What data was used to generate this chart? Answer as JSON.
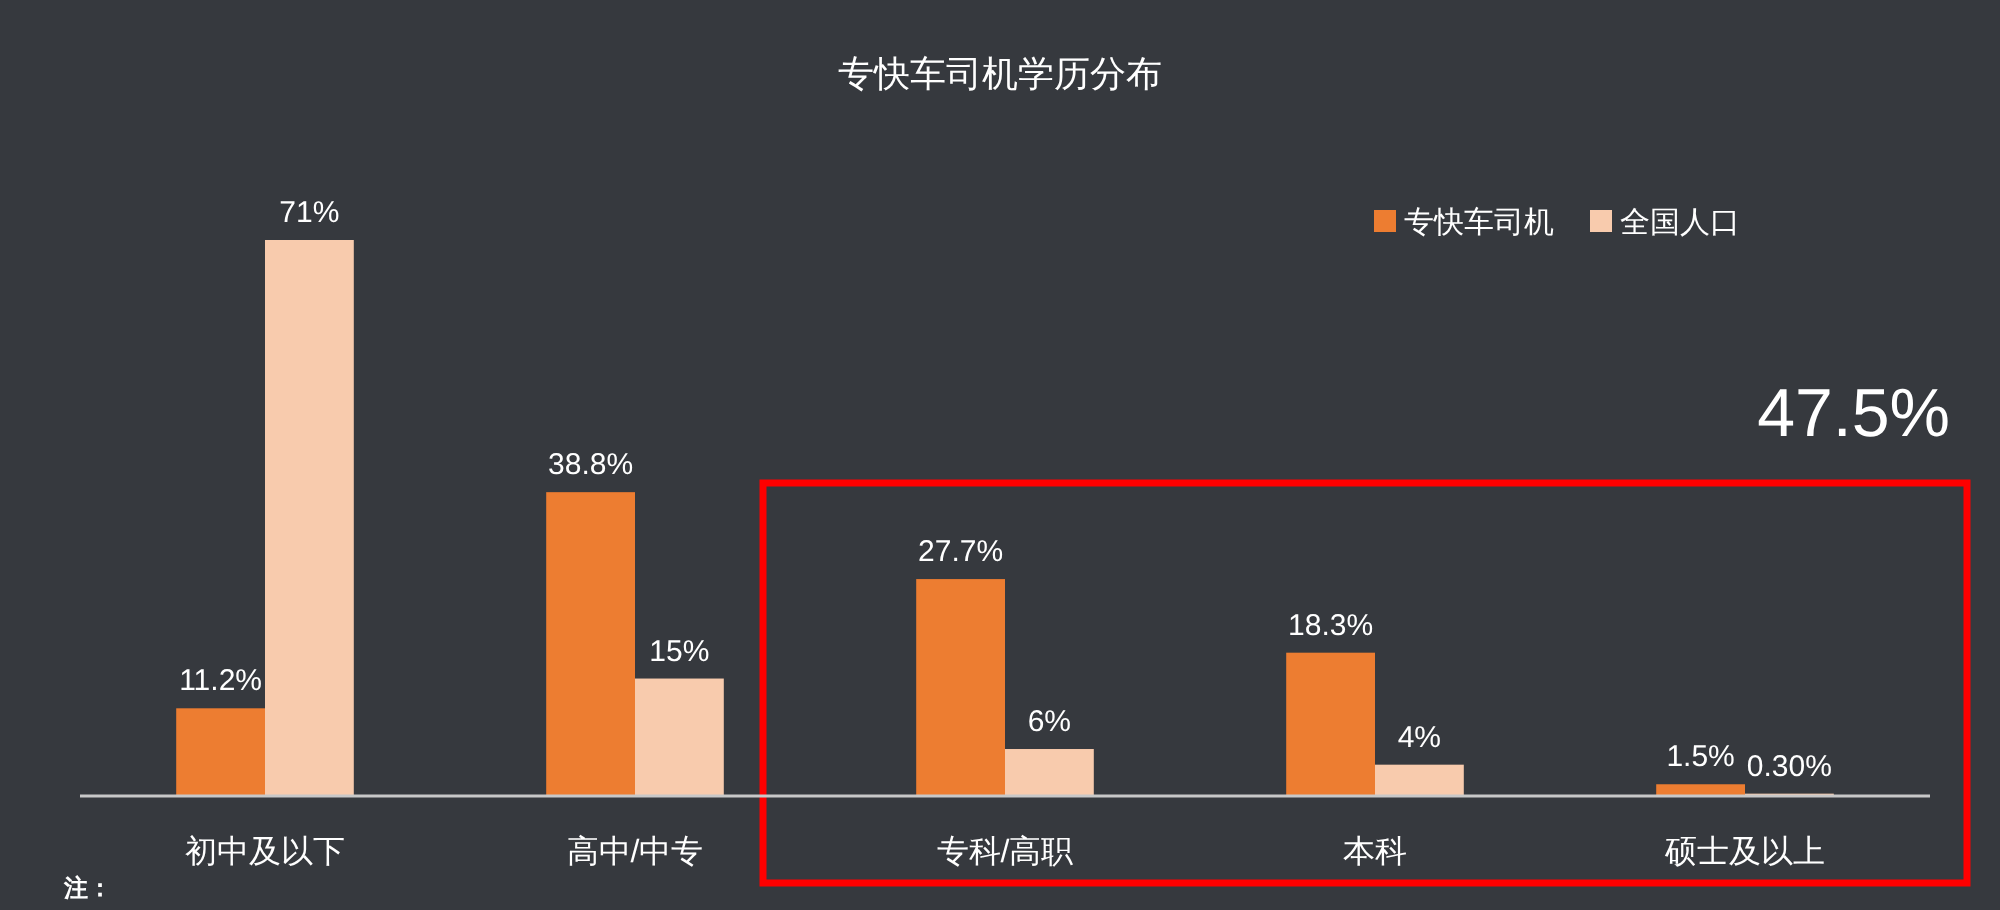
{
  "chart_data": {
    "type": "bar",
    "title": "专快车司机学历分布",
    "categories": [
      "初中及以下",
      "高中/中专",
      "专科/高职",
      "本科",
      "硕士及以上"
    ],
    "series": [
      {
        "name": "专快车司机",
        "color": "#ed7d31",
        "values": [
          11.2,
          38.8,
          27.7,
          18.3,
          1.5
        ],
        "value_labels": [
          "11.2%",
          "38.8%",
          "27.7%",
          "18.3%",
          "1.5%"
        ]
      },
      {
        "name": "全国人口",
        "color": "#f8cbad",
        "values": [
          71,
          15,
          6,
          4,
          0.3
        ],
        "value_labels": [
          "71%",
          "15%",
          "6%",
          "4%",
          "0.30%"
        ]
      }
    ],
    "legend": "top right",
    "annotations": [
      "47.5%",
      "注："
    ]
  }
}
